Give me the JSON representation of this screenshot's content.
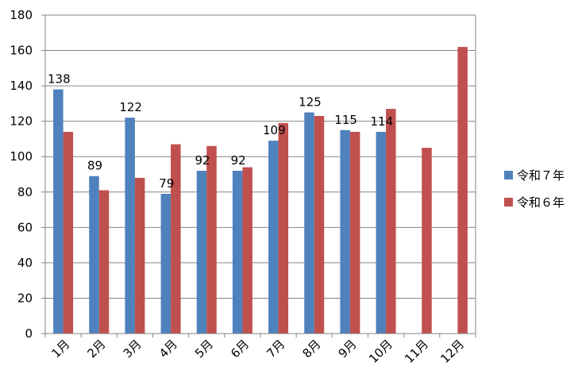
{
  "chart_data": {
    "type": "bar",
    "title": "",
    "xlabel": "",
    "ylabel": "",
    "categories": [
      "1月",
      "2月",
      "3月",
      "4月",
      "5月",
      "6月",
      "7月",
      "8月",
      "9月",
      "10月",
      "11月",
      "12月"
    ],
    "series": [
      {
        "name": "令和７年",
        "color": "#4f81bd",
        "values": [
          138,
          89,
          122,
          79,
          92,
          92,
          109,
          125,
          115,
          114,
          null,
          null
        ],
        "data_labels": [
          "138",
          "89",
          "122",
          "79",
          "92",
          "92",
          "109",
          "125",
          "115",
          "114",
          null,
          null
        ]
      },
      {
        "name": "令和６年",
        "color": "#c0504d",
        "values": [
          114,
          81,
          88,
          107,
          106,
          94,
          119,
          123,
          114,
          127,
          105,
          162
        ]
      }
    ],
    "ylim": [
      0,
      180
    ],
    "yticks": [
      "0",
      "20",
      "40",
      "60",
      "80",
      "100",
      "120",
      "140",
      "160",
      "180"
    ],
    "grid": true,
    "legend_position": "right"
  }
}
